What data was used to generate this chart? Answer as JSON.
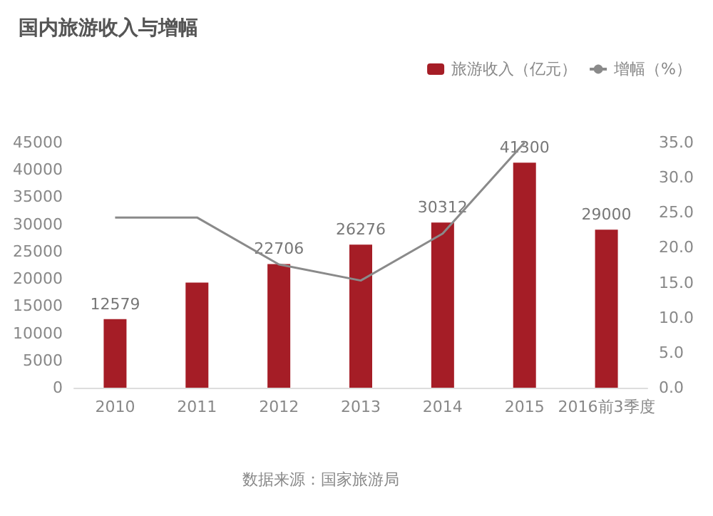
{
  "chart_data": {
    "type": "bar",
    "title": "国内旅游收入与增幅",
    "categories": [
      "2010",
      "2011",
      "2012",
      "2013",
      "2014",
      "2015",
      "2016前3季度"
    ],
    "series": [
      {
        "name": "旅游收入（亿元）",
        "color": "#a51d26",
        "values": [
          12579,
          19300,
          22706,
          26276,
          30312,
          41300,
          29000
        ],
        "value_labels": [
          "12579",
          null,
          "22706",
          "26276",
          "30312",
          "41300",
          "29000"
        ]
      },
      {
        "name": "增幅（%）",
        "type": "line",
        "axis": "y2",
        "color": "#8a8a8a",
        "values": [
          24.3,
          24.3,
          17.6,
          15.3,
          22,
          35,
          null
        ]
      }
    ],
    "ylim": [
      0,
      45000
    ],
    "yticks": [
      0,
      5000,
      10000,
      15000,
      20000,
      25000,
      30000,
      35000,
      40000,
      45000
    ],
    "y2lim": [
      0,
      35
    ],
    "y2ticks": [
      {
        "value": 0,
        "label": "0.0"
      },
      {
        "value": 5,
        "label": "5.0"
      },
      {
        "value": 10,
        "label": "10.0"
      },
      {
        "value": 15,
        "label": "15.0"
      },
      {
        "value": 20,
        "label": "20.0"
      },
      {
        "value": 25,
        "label": "25.0"
      },
      {
        "value": 30,
        "label": "30.0"
      },
      {
        "value": 35,
        "label": "35.0"
      }
    ],
    "annotations": [
      "数据来源：国家旅游局"
    ],
    "legend": "top right",
    "grid": false,
    "marker": "none"
  }
}
